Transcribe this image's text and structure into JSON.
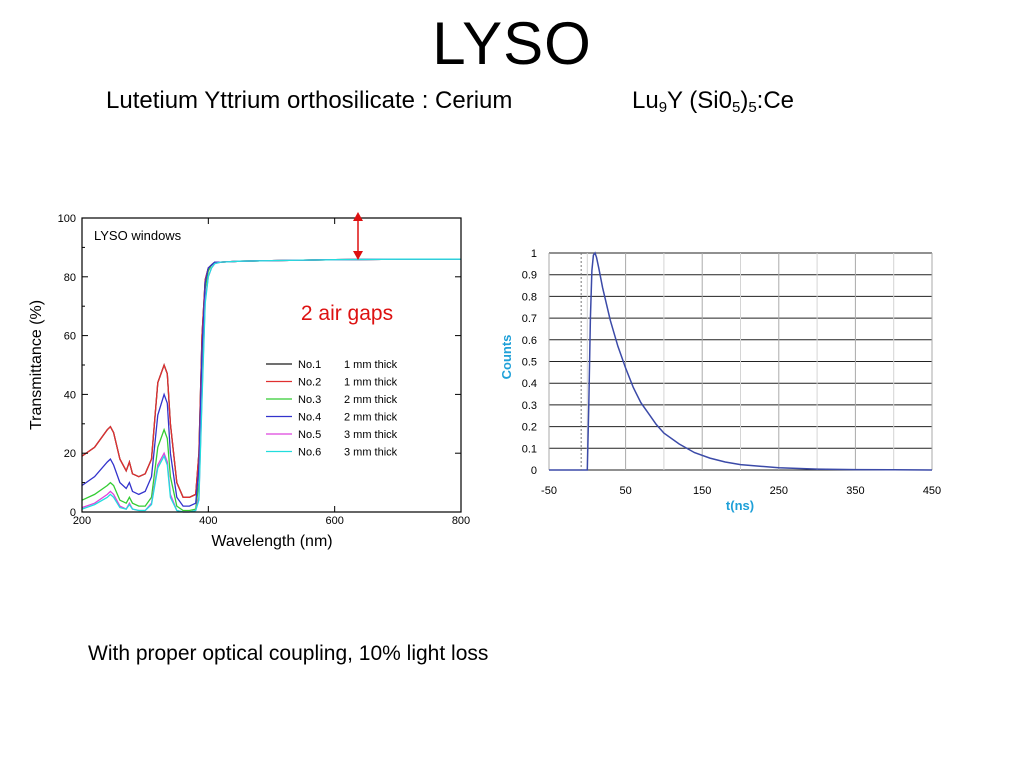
{
  "slide": {
    "title": "LYSO",
    "subtitle": "Lutetium Yttrium orthosilicate : Cerium",
    "formula": {
      "p1": "Lu",
      "s1": "9",
      "p2": "Y (Si0",
      "s2": "5",
      "p3": ")",
      "s3": "5",
      "p4": ":Ce"
    },
    "footer": "With proper optical coupling, 10% light loss"
  },
  "colors": {
    "no1": "#1a1a1a",
    "no2": "#e03030",
    "no3": "#33cc33",
    "no4": "#3333cc",
    "no5": "#dd44dd",
    "no6": "#22dddd",
    "annotation": "#dd1111",
    "decay": "#3b4aa8",
    "axis_title_blue": "#1fa0d8"
  },
  "chart_data": [
    {
      "type": "line",
      "title": "LYSO windows",
      "xlabel": "Wavelength (nm)",
      "ylabel": "Transmittance (%)",
      "xlim": [
        200,
        800
      ],
      "ylim": [
        0,
        100
      ],
      "xticks": [
        200,
        400,
        600,
        800
      ],
      "yticks": [
        0,
        20,
        40,
        60,
        80,
        100
      ],
      "legend_position": "center-right",
      "annotation": "2 air gaps",
      "series": [
        {
          "name": "No.1",
          "label": "1 mm thick",
          "color_key": "no1",
          "x": [
            200,
            220,
            240,
            245,
            250,
            260,
            270,
            275,
            280,
            290,
            300,
            310,
            320,
            330,
            335,
            340,
            350,
            360,
            370,
            380,
            385,
            390,
            395,
            400,
            405,
            410,
            420,
            450,
            500,
            600,
            700,
            800
          ],
          "y": [
            19,
            22,
            28,
            29,
            27,
            18,
            14,
            17,
            13,
            12,
            13,
            18,
            44,
            50,
            47,
            30,
            10,
            5,
            5,
            6,
            20,
            60,
            79,
            83,
            84,
            85,
            85,
            85.3,
            85.5,
            85.8,
            86,
            86
          ]
        },
        {
          "name": "No.2",
          "label": "1 mm thick",
          "color_key": "no2",
          "x": [
            200,
            220,
            240,
            245,
            250,
            260,
            270,
            275,
            280,
            290,
            300,
            310,
            320,
            330,
            335,
            340,
            350,
            360,
            370,
            380,
            385,
            390,
            395,
            400,
            405,
            410,
            420,
            450,
            500,
            600,
            700,
            800
          ],
          "y": [
            19,
            22,
            28,
            29,
            27,
            18,
            14,
            17,
            13,
            12,
            13,
            18,
            44,
            50,
            47,
            30,
            10,
            5,
            5,
            6,
            20,
            60,
            79,
            83,
            84,
            85,
            85,
            85.3,
            85.5,
            85.8,
            86,
            86
          ]
        },
        {
          "name": "No.3",
          "label": "2 mm thick",
          "color_key": "no3",
          "x": [
            200,
            220,
            240,
            245,
            250,
            260,
            270,
            275,
            280,
            290,
            300,
            310,
            320,
            330,
            335,
            340,
            350,
            360,
            370,
            380,
            385,
            390,
            395,
            400,
            405,
            410,
            420,
            450,
            500,
            600,
            700,
            800
          ],
          "y": [
            4,
            6,
            9,
            10,
            9,
            4,
            3,
            5,
            3,
            2,
            2,
            5,
            22,
            28,
            25,
            12,
            2,
            0.5,
            0.5,
            1,
            10,
            50,
            76,
            82,
            84,
            85,
            85,
            85.3,
            85.5,
            85.8,
            86,
            86
          ]
        },
        {
          "name": "No.4",
          "label": "2 mm thick",
          "color_key": "no4",
          "x": [
            200,
            220,
            240,
            245,
            250,
            260,
            270,
            275,
            280,
            290,
            300,
            310,
            320,
            330,
            335,
            340,
            350,
            360,
            370,
            380,
            385,
            390,
            395,
            400,
            405,
            410,
            420,
            450,
            500,
            600,
            700,
            800
          ],
          "y": [
            9,
            12,
            17,
            18,
            16,
            10,
            8,
            10,
            7,
            6,
            7,
            12,
            33,
            40,
            37,
            20,
            5,
            2,
            2,
            3,
            15,
            55,
            78,
            83,
            84,
            85,
            85,
            85.3,
            85.5,
            85.8,
            86,
            86
          ]
        },
        {
          "name": "No.5",
          "label": "3 mm thick",
          "color_key": "no5",
          "x": [
            200,
            220,
            240,
            245,
            250,
            260,
            270,
            275,
            280,
            290,
            300,
            310,
            320,
            330,
            335,
            340,
            350,
            360,
            370,
            380,
            385,
            390,
            395,
            400,
            405,
            410,
            420,
            450,
            500,
            600,
            700,
            800
          ],
          "y": [
            1.5,
            3,
            6,
            7,
            6,
            2,
            1,
            3,
            1,
            0.5,
            0.5,
            3,
            16,
            20,
            17,
            6,
            0.5,
            0,
            0,
            0.5,
            5,
            40,
            72,
            80,
            83,
            84.5,
            85,
            85.3,
            85.5,
            85.8,
            86,
            86
          ]
        },
        {
          "name": "No.6",
          "label": "3 mm thick",
          "color_key": "no6",
          "x": [
            200,
            220,
            240,
            245,
            250,
            260,
            270,
            275,
            280,
            290,
            300,
            310,
            320,
            330,
            335,
            340,
            350,
            360,
            370,
            380,
            385,
            390,
            395,
            400,
            405,
            410,
            420,
            450,
            500,
            600,
            700,
            800
          ],
          "y": [
            1,
            2.5,
            5,
            6,
            5,
            1.5,
            1,
            2.5,
            1,
            0.5,
            0.5,
            2.5,
            15,
            19,
            16,
            5,
            0.5,
            0,
            0,
            0.5,
            4,
            38,
            71,
            80,
            83,
            84.5,
            85,
            85.3,
            85.5,
            85.8,
            86,
            86
          ]
        }
      ]
    },
    {
      "type": "line",
      "xlabel": "t(ns)",
      "ylabel": "Counts",
      "xlim": [
        -50,
        450
      ],
      "ylim": [
        0,
        1
      ],
      "xticks": [
        -50,
        50,
        150,
        250,
        350,
        450
      ],
      "yticks": [
        0,
        0.1,
        0.2,
        0.3,
        0.4,
        0.5,
        0.6,
        0.7,
        0.8,
        0.9,
        1
      ],
      "ytick_labels": [
        "0",
        "0.1",
        "0.2",
        "0.3",
        "0.4",
        "0.5",
        "0.6",
        "0.7",
        "0.8",
        "0.9",
        "1"
      ],
      "grid": true,
      "series": [
        {
          "color_key": "decay",
          "x": [
            -50,
            -10,
            0,
            2,
            4,
            6,
            8,
            10,
            12,
            15,
            20,
            30,
            40,
            50,
            60,
            70,
            80,
            90,
            100,
            120,
            140,
            160,
            180,
            200,
            250,
            300,
            350,
            400,
            450
          ],
          "y": [
            0,
            0,
            0,
            0.3,
            0.7,
            0.92,
            0.99,
            1,
            0.98,
            0.93,
            0.84,
            0.69,
            0.57,
            0.47,
            0.38,
            0.31,
            0.26,
            0.21,
            0.17,
            0.12,
            0.08,
            0.055,
            0.037,
            0.025,
            0.01,
            0.004,
            0.002,
            0.001,
            0
          ]
        }
      ]
    }
  ]
}
